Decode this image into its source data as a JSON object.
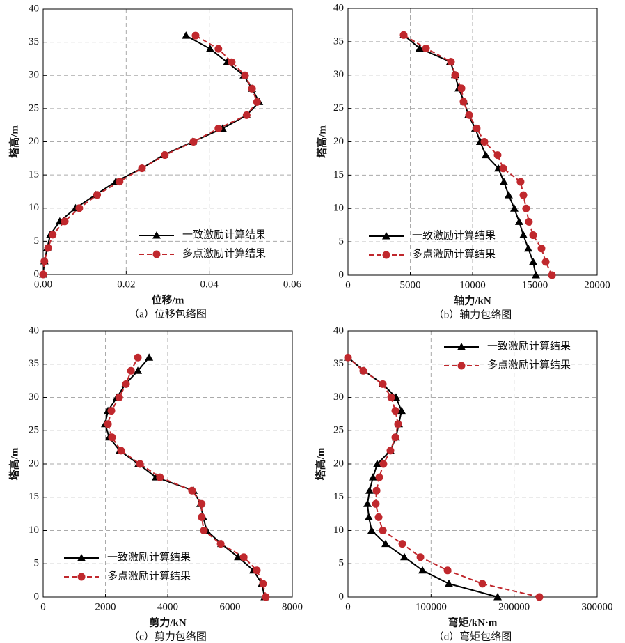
{
  "chart_data": [
    {
      "type": "line",
      "title": "（a）位移包络图",
      "xlabel": "位移/m",
      "ylabel": "塔高/m",
      "y": [
        0,
        2,
        4,
        6,
        8,
        10,
        12,
        14,
        16,
        18,
        20,
        22,
        24,
        26,
        28,
        30,
        32,
        34,
        36
      ],
      "series": [
        {
          "name": "一致激励计算结果",
          "color": "#000000",
          "marker": "triangle",
          "linestyle": "solid",
          "x": [
            0,
            0.0003,
            0.001,
            0.0017,
            0.004,
            0.0078,
            0.0126,
            0.0175,
            0.0238,
            0.029,
            0.036,
            0.0432,
            0.049,
            0.052,
            0.0503,
            0.0483,
            0.0443,
            0.0402,
            0.0344
          ]
        },
        {
          "name": "多点激励计算结果",
          "color": "#c0282d",
          "marker": "circle",
          "linestyle": "dashed",
          "x": [
            0,
            0.0003,
            0.0012,
            0.0023,
            0.0052,
            0.0087,
            0.013,
            0.0184,
            0.0238,
            0.0293,
            0.0362,
            0.0422,
            0.049,
            0.0515,
            0.0503,
            0.0486,
            0.0454,
            0.0422,
            0.0367
          ]
        }
      ],
      "xlim": [
        0,
        0.06
      ],
      "ylim": [
        0,
        40
      ],
      "xticks": [
        {
          "value": 0,
          "label": "0.00"
        },
        {
          "value": 0.02,
          "label": "0.02"
        },
        {
          "value": 0.04,
          "label": "0.04"
        },
        {
          "value": 0.06,
          "label": "0.06"
        }
      ],
      "yticks": [
        0,
        5,
        10,
        15,
        20,
        25,
        30,
        35,
        40
      ],
      "grid": true,
      "legend": "lower right"
    },
    {
      "type": "line",
      "title": "（b）轴力包络图",
      "xlabel": "轴力/kN",
      "ylabel": "塔高/m",
      "y": [
        0,
        2,
        4,
        6,
        8,
        10,
        12,
        14,
        16,
        18,
        20,
        22,
        24,
        26,
        28,
        30,
        32,
        34,
        36
      ],
      "series": [
        {
          "name": "一致激励计算结果",
          "color": "#000000",
          "marker": "triangle",
          "linestyle": "solid",
          "x": [
            15080,
            14860,
            14470,
            14080,
            13740,
            13350,
            12900,
            12510,
            12070,
            11060,
            10610,
            10220,
            9660,
            9330,
            8880,
            8600,
            8210,
            5750,
            4470
          ]
        },
        {
          "name": "多点激励计算结果",
          "color": "#c0282d",
          "marker": "circle",
          "linestyle": "dashed",
          "x": [
            16370,
            15870,
            15530,
            14860,
            14520,
            14300,
            14080,
            13850,
            12460,
            12010,
            10950,
            10330,
            9720,
            9270,
            9110,
            8600,
            8270,
            6260,
            4470
          ]
        }
      ],
      "xlim": [
        0,
        20000
      ],
      "ylim": [
        0,
        40
      ],
      "xticks": [
        0,
        5000,
        10000,
        15000,
        20000
      ],
      "yticks": [
        0,
        5,
        10,
        15,
        20,
        25,
        30,
        35,
        40
      ],
      "grid": true,
      "legend": "lower left"
    },
    {
      "type": "line",
      "title": "（c）剪力包络图",
      "xlabel": "剪力/kN",
      "ylabel": "塔高/m",
      "y": [
        0,
        2,
        4,
        6,
        8,
        10,
        12,
        14,
        16,
        18,
        20,
        22,
        24,
        26,
        28,
        30,
        32,
        34,
        36
      ],
      "series": [
        {
          "name": "一致激励计算结果",
          "color": "#000000",
          "marker": "triangle",
          "linestyle": "solid",
          "x": [
            7110,
            7020,
            6750,
            6260,
            5720,
            5250,
            5140,
            5050,
            4830,
            3620,
            3060,
            2460,
            2120,
            1990,
            2080,
            2370,
            2640,
            3040,
            3400
          ]
        },
        {
          "name": "多点激励计算结果",
          "color": "#c0282d",
          "marker": "circle",
          "linestyle": "dashed",
          "x": [
            7150,
            7060,
            6860,
            6440,
            5700,
            5160,
            5090,
            5090,
            4780,
            3750,
            3110,
            2500,
            2210,
            2080,
            2190,
            2440,
            2660,
            2820,
            3040
          ]
        }
      ],
      "xlim": [
        0,
        8000
      ],
      "ylim": [
        0,
        40
      ],
      "xticks": [
        0,
        2000,
        4000,
        6000,
        8000
      ],
      "yticks": [
        0,
        5,
        10,
        15,
        20,
        25,
        30,
        35,
        40
      ],
      "grid": true,
      "legend": "lower left"
    },
    {
      "type": "line",
      "title": "（d）弯矩包络图",
      "xlabel": "弯矩/kN·m",
      "ylabel": "塔高/m",
      "y": [
        0,
        2,
        4,
        6,
        8,
        10,
        12,
        14,
        16,
        18,
        20,
        22,
        24,
        26,
        28,
        30,
        32,
        34,
        36
      ],
      "series": [
        {
          "name": "一致激励计算结果",
          "color": "#000000",
          "marker": "triangle",
          "linestyle": "solid",
          "x": [
            180200,
            121500,
            89700,
            67900,
            45300,
            28500,
            25100,
            23500,
            26000,
            30200,
            35200,
            51100,
            57800,
            61200,
            64500,
            57800,
            41900,
            19300,
            0
          ]
        },
        {
          "name": "多点激励计算结果",
          "color": "#c0282d",
          "marker": "circle",
          "linestyle": "dashed",
          "x": [
            230500,
            161800,
            119900,
            87200,
            65400,
            41900,
            36900,
            33500,
            34400,
            37700,
            42700,
            51100,
            57000,
            60300,
            57000,
            52000,
            41900,
            18400,
            0
          ]
        }
      ],
      "xlim": [
        0,
        300000
      ],
      "ylim": [
        0,
        40
      ],
      "xticks": [
        0,
        100000,
        200000,
        300000
      ],
      "yticks": [
        0,
        5,
        10,
        15,
        20,
        25,
        30,
        35,
        40
      ],
      "grid": true,
      "legend": "upper right"
    }
  ]
}
